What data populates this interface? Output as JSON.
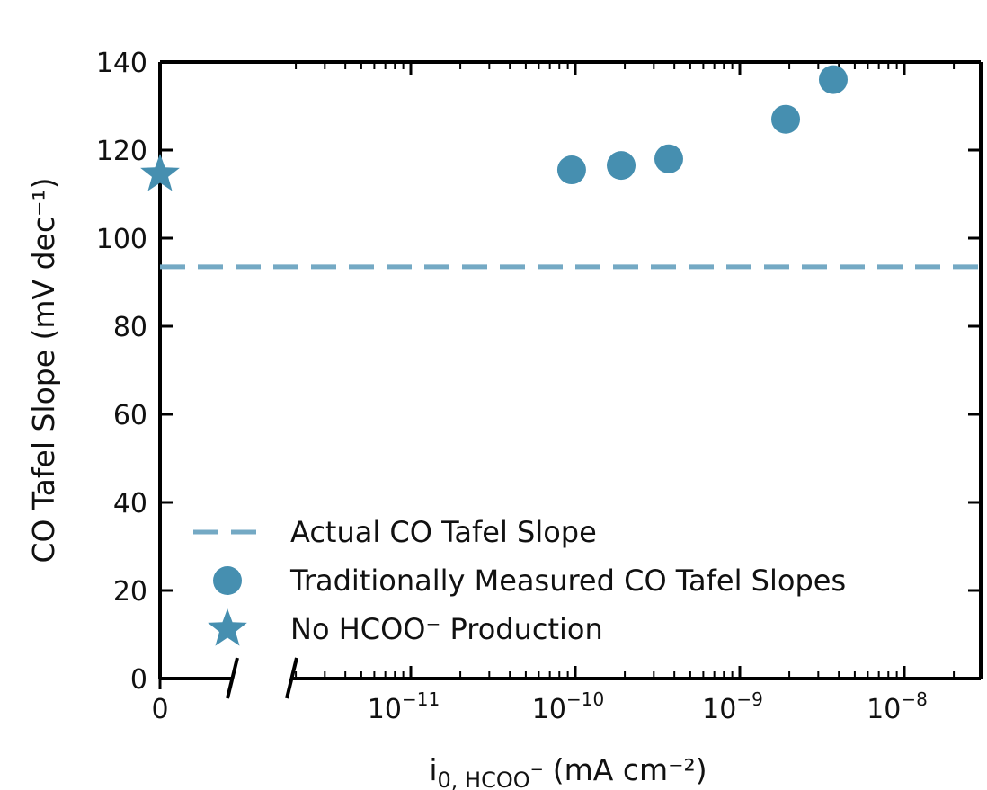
{
  "colors": {
    "points": "#468fb0",
    "dashed_line": "#74a9c4",
    "axes": "#000000"
  },
  "chart_data": {
    "type": "scatter",
    "title": "",
    "ylabel": "CO Tafel Slope (mV dec⁻¹)",
    "xlabel": {
      "main": "i",
      "subscript": "0, HCOO",
      "subscript_sup": "−",
      "units": "(mA cm⁻²)"
    },
    "x_scale": "log with broken axis; zero shown at left",
    "xlim": [
      3e-12,
      2.8e-08
    ],
    "ylim": [
      0,
      140
    ],
    "y_ticks": [
      0,
      20,
      40,
      60,
      80,
      100,
      120,
      140
    ],
    "y_tick_labels": [
      "0",
      "20",
      "40",
      "60",
      "80",
      "100",
      "120",
      "140"
    ],
    "x_zero_label": "0",
    "x_major_ticks": [
      {
        "value": 1e-11,
        "base": "10",
        "exp": "−11"
      },
      {
        "value": 1e-10,
        "base": "10",
        "exp": "−10"
      },
      {
        "value": 1e-09,
        "base": "10",
        "exp": "−9"
      },
      {
        "value": 1e-08,
        "base": "10",
        "exp": "−8"
      }
    ],
    "series": [
      {
        "name": "Actual CO Tafel Slope",
        "kind": "hline",
        "style": "dashed",
        "y": 93.5
      },
      {
        "name": "Traditionally Measured CO Tafel Slopes",
        "kind": "scatter",
        "marker": "circle",
        "points": [
          {
            "x": 9.5e-11,
            "y": 115.5
          },
          {
            "x": 1.9e-10,
            "y": 116.5
          },
          {
            "x": 3.7e-10,
            "y": 118.0
          },
          {
            "x": 1.9e-09,
            "y": 127.0
          },
          {
            "x": 3.7e-09,
            "y": 136.0
          }
        ]
      },
      {
        "name": "No HCOO⁻ Production",
        "kind": "scatter",
        "marker": "star",
        "points": [
          {
            "x": 0,
            "y": 114.5
          }
        ]
      }
    ],
    "legend": {
      "placement": "lower-left",
      "entries": [
        {
          "marker": "dashed-line",
          "label": "Actual CO Tafel Slope"
        },
        {
          "marker": "circle",
          "label": "Traditionally Measured CO Tafel Slopes"
        },
        {
          "marker": "star",
          "label": "No HCOO⁻ Production"
        }
      ]
    },
    "grid": false
  }
}
